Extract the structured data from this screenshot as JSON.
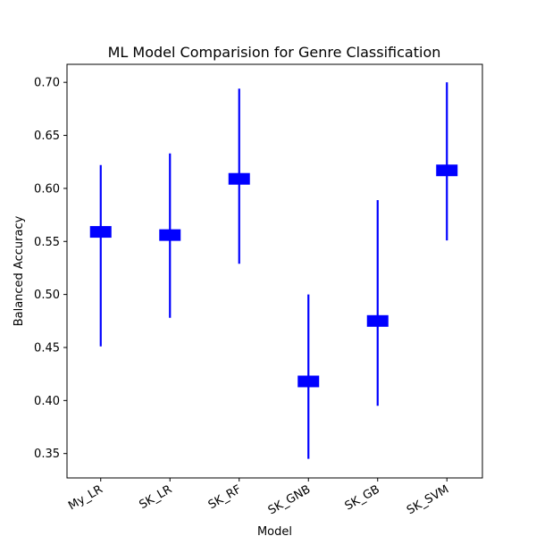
{
  "chart_data": {
    "type": "errorbar",
    "title": "ML Model Comparision for Genre Classification",
    "xlabel": "Model",
    "ylabel": "Balanced Accuracy",
    "ylim": [
      0.327,
      0.717
    ],
    "yticks": [
      "0.35",
      "0.40",
      "0.45",
      "0.50",
      "0.55",
      "0.60",
      "0.65",
      "0.70"
    ],
    "ytick_values": [
      0.35,
      0.4,
      0.45,
      0.5,
      0.55,
      0.6,
      0.65,
      0.7
    ],
    "categories": [
      "My_LR",
      "SK_LR",
      "SK_RF",
      "SK_GNB",
      "SK_GB",
      "SK_SVM"
    ],
    "series": [
      {
        "values": [
          0.559,
          0.556,
          0.609,
          0.418,
          0.475,
          0.617
        ],
        "lower": [
          0.451,
          0.478,
          0.529,
          0.345,
          0.395,
          0.551
        ],
        "upper": [
          0.622,
          0.633,
          0.694,
          0.5,
          0.589,
          0.7
        ]
      }
    ],
    "color": "#0000ff",
    "grid": false
  }
}
